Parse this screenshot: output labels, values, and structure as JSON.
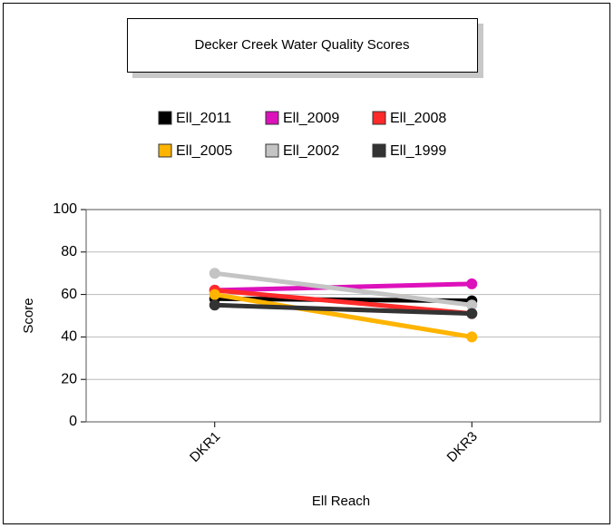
{
  "chart_data": {
    "type": "line",
    "title": "Decker Creek Water Quality Scores",
    "x_label": "Ell Reach",
    "y_label": "Score",
    "categories": [
      "DKR1",
      "DKR3"
    ],
    "series": [
      {
        "name": "Ell_2011",
        "color": "#000000",
        "values": [
          58,
          57
        ]
      },
      {
        "name": "Ell_2009",
        "color": "#dd11bb",
        "values": [
          62,
          65
        ]
      },
      {
        "name": "Ell_2008",
        "color": "#ff2a2a",
        "values": [
          62,
          51
        ]
      },
      {
        "name": "Ell_2005",
        "color": "#ffb400",
        "values": [
          60,
          40
        ]
      },
      {
        "name": "Ell_2002",
        "color": "#c4c4c4",
        "values": [
          70,
          55
        ]
      },
      {
        "name": "Ell_1999",
        "color": "#333333",
        "values": [
          55,
          51
        ]
      }
    ],
    "ylim": [
      0,
      100
    ],
    "yticks": [
      0,
      20,
      40,
      60,
      80,
      100
    ],
    "grid": true
  }
}
